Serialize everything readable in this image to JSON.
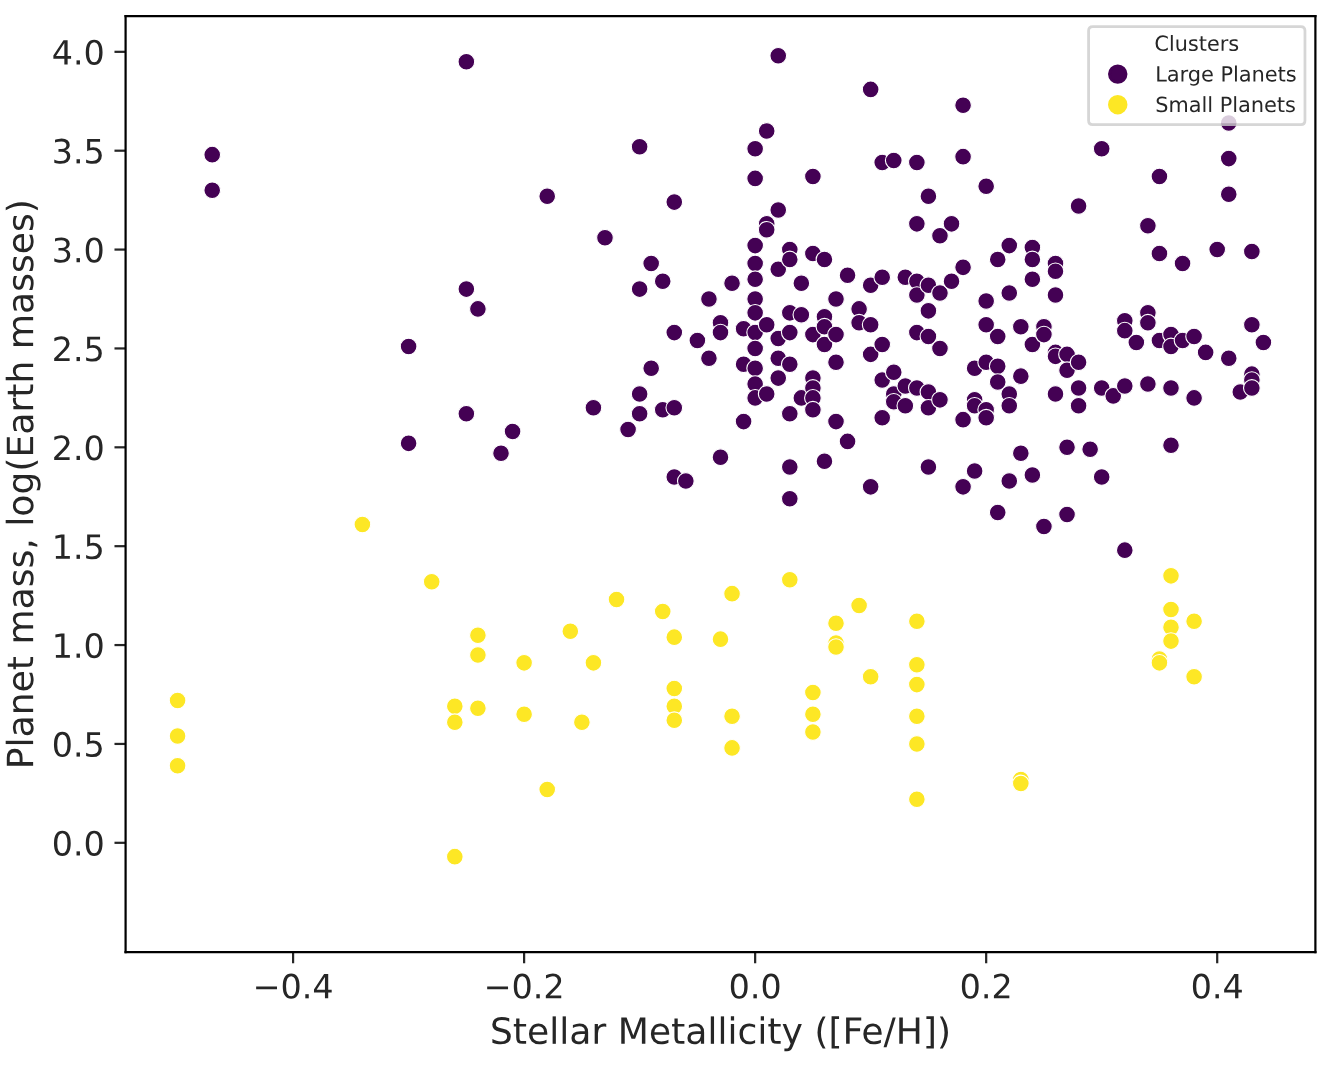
{
  "chart_data": {
    "type": "scatter",
    "xlabel": "Stellar Metallicity ([Fe/H])",
    "ylabel": "Planet mass, log(Earth masses)",
    "legend_title": "Clusters",
    "legend": "top right",
    "grid": false,
    "marker": "circle",
    "xlim": [
      -0.545,
      0.485
    ],
    "ylim": [
      -0.553,
      4.18
    ],
    "xticks": [
      {
        "value": -0.4,
        "label": "−0.4"
      },
      {
        "value": -0.2,
        "label": "−0.2"
      },
      {
        "value": 0,
        "label": "0.0"
      },
      0.2,
      0.4
    ],
    "yticks": [
      {
        "value": 0,
        "label": "0.0"
      },
      0.5,
      {
        "value": 1,
        "label": "1.0"
      },
      1.5,
      {
        "value": 2,
        "label": "2.0"
      },
      2.5,
      {
        "value": 3,
        "label": "3.0"
      },
      3.5,
      {
        "value": 4,
        "label": "4.0"
      }
    ],
    "series": [
      {
        "name": "Large Planets",
        "color": "#440154",
        "x": [
          -0.47,
          -0.47,
          -0.3,
          -0.3,
          -0.25,
          -0.25,
          -0.25,
          -0.24,
          -0.22,
          -0.21,
          -0.18,
          -0.14,
          -0.13,
          -0.11,
          -0.1,
          -0.1,
          -0.1,
          -0.1,
          -0.09,
          -0.09,
          -0.08,
          -0.08,
          -0.07,
          -0.07,
          -0.07,
          -0.07,
          -0.06,
          -0.05,
          -0.04,
          -0.04,
          -0.03,
          -0.03,
          -0.03,
          -0.02,
          -0.01,
          -0.01,
          -0.01,
          0.0,
          0.0,
          0.0,
          0.0,
          0.0,
          0.0,
          0.0,
          0.0,
          0.0,
          0.0,
          0.0,
          0.0,
          0.01,
          0.01,
          0.01,
          0.01,
          0.01,
          0.02,
          0.02,
          0.02,
          0.02,
          0.02,
          0.02,
          0.03,
          0.03,
          0.03,
          0.03,
          0.03,
          0.03,
          0.03,
          0.03,
          0.04,
          0.04,
          0.04,
          0.05,
          0.05,
          0.05,
          0.05,
          0.05,
          0.05,
          0.05,
          0.06,
          0.06,
          0.06,
          0.06,
          0.06,
          0.07,
          0.07,
          0.07,
          0.07,
          0.08,
          0.08,
          0.09,
          0.09,
          0.1,
          0.1,
          0.1,
          0.1,
          0.1,
          0.11,
          0.11,
          0.11,
          0.11,
          0.11,
          0.12,
          0.12,
          0.12,
          0.12,
          0.13,
          0.13,
          0.13,
          0.14,
          0.14,
          0.14,
          0.14,
          0.14,
          0.14,
          0.15,
          0.15,
          0.15,
          0.15,
          0.15,
          0.15,
          0.15,
          0.16,
          0.16,
          0.16,
          0.16,
          0.17,
          0.17,
          0.18,
          0.18,
          0.18,
          0.18,
          0.18,
          0.19,
          0.19,
          0.19,
          0.19,
          0.2,
          0.2,
          0.2,
          0.2,
          0.2,
          0.2,
          0.21,
          0.21,
          0.21,
          0.21,
          0.21,
          0.22,
          0.22,
          0.22,
          0.22,
          0.22,
          0.23,
          0.23,
          0.23,
          0.24,
          0.24,
          0.24,
          0.24,
          0.24,
          0.25,
          0.25,
          0.25,
          0.26,
          0.26,
          0.26,
          0.26,
          0.26,
          0.26,
          0.27,
          0.27,
          0.27,
          0.27,
          0.28,
          0.28,
          0.28,
          0.28,
          0.29,
          0.3,
          0.3,
          0.3,
          0.31,
          0.32,
          0.32,
          0.32,
          0.32,
          0.33,
          0.34,
          0.34,
          0.34,
          0.34,
          0.35,
          0.35,
          0.35,
          0.36,
          0.36,
          0.36,
          0.36,
          0.37,
          0.37,
          0.38,
          0.38,
          0.39,
          0.4,
          0.41,
          0.41,
          0.41,
          0.41,
          0.42,
          0.43,
          0.43,
          0.43,
          0.43,
          0.43,
          0.44
        ],
        "values": [
          3.48,
          3.3,
          2.51,
          2.02,
          3.95,
          2.8,
          2.17,
          2.7,
          1.97,
          2.08,
          3.27,
          2.2,
          3.06,
          2.09,
          3.52,
          2.8,
          2.27,
          2.17,
          2.93,
          2.4,
          2.84,
          2.19,
          3.24,
          2.58,
          2.2,
          1.85,
          1.83,
          2.54,
          2.75,
          2.45,
          2.63,
          2.58,
          1.95,
          2.83,
          2.6,
          2.13,
          2.42,
          3.51,
          3.36,
          3.02,
          2.93,
          2.85,
          2.75,
          2.68,
          2.58,
          2.5,
          2.4,
          2.32,
          2.25,
          3.6,
          3.13,
          3.1,
          2.62,
          2.27,
          3.98,
          3.2,
          2.9,
          2.55,
          2.45,
          2.35,
          3.0,
          2.95,
          2.68,
          2.58,
          2.42,
          2.17,
          1.9,
          1.74,
          2.83,
          2.67,
          2.25,
          3.37,
          2.98,
          2.57,
          2.35,
          2.3,
          2.25,
          2.19,
          2.95,
          2.66,
          2.61,
          2.52,
          1.93,
          2.75,
          2.57,
          2.43,
          2.13,
          2.87,
          2.03,
          2.7,
          2.63,
          3.81,
          2.82,
          2.62,
          2.47,
          1.8,
          3.44,
          2.86,
          2.52,
          2.34,
          2.15,
          3.45,
          2.38,
          2.27,
          2.23,
          2.86,
          2.31,
          2.21,
          3.44,
          3.13,
          2.84,
          2.77,
          2.58,
          2.3,
          3.27,
          2.82,
          2.69,
          2.56,
          2.28,
          2.2,
          1.9,
          3.07,
          2.78,
          2.5,
          2.24,
          3.13,
          2.84,
          3.73,
          3.47,
          2.91,
          2.14,
          1.8,
          2.4,
          2.24,
          2.21,
          1.88,
          3.32,
          2.74,
          2.62,
          2.43,
          2.19,
          2.15,
          2.95,
          2.56,
          2.41,
          2.33,
          1.67,
          3.02,
          2.78,
          2.27,
          2.21,
          1.83,
          2.61,
          2.36,
          1.97,
          3.01,
          2.95,
          2.85,
          2.52,
          1.86,
          2.61,
          2.57,
          1.6,
          2.93,
          2.89,
          2.77,
          2.48,
          2.46,
          2.27,
          2.47,
          2.39,
          2.0,
          1.66,
          3.22,
          2.43,
          2.3,
          2.21,
          1.99,
          3.51,
          2.3,
          1.85,
          2.26,
          2.64,
          2.59,
          2.31,
          1.48,
          2.53,
          3.12,
          2.68,
          2.63,
          2.32,
          3.37,
          2.98,
          2.54,
          2.57,
          2.51,
          2.3,
          2.01,
          2.93,
          2.54,
          2.56,
          2.25,
          2.48,
          3.0,
          3.64,
          3.46,
          3.28,
          2.45,
          2.28,
          2.99,
          2.62,
          2.37,
          2.34,
          2.3,
          2.53
        ]
      },
      {
        "name": "Small Planets",
        "color": "#fde725",
        "x": [
          -0.5,
          -0.5,
          -0.5,
          -0.34,
          -0.28,
          -0.26,
          -0.26,
          -0.26,
          -0.24,
          -0.24,
          -0.24,
          -0.2,
          -0.2,
          -0.18,
          -0.16,
          -0.15,
          -0.14,
          -0.12,
          -0.08,
          -0.07,
          -0.07,
          -0.07,
          -0.07,
          -0.03,
          -0.02,
          -0.02,
          -0.02,
          0.03,
          0.05,
          0.05,
          0.05,
          0.07,
          0.07,
          0.07,
          0.09,
          0.1,
          0.14,
          0.14,
          0.14,
          0.14,
          0.14,
          0.14,
          0.23,
          0.23,
          0.35,
          0.35,
          0.36,
          0.36,
          0.36,
          0.36,
          0.38,
          0.38
        ],
        "values": [
          0.72,
          0.54,
          0.39,
          1.61,
          1.32,
          0.69,
          0.61,
          -0.07,
          1.05,
          0.95,
          0.68,
          0.91,
          0.65,
          0.27,
          1.07,
          0.61,
          0.91,
          1.23,
          1.17,
          1.04,
          0.78,
          0.69,
          0.62,
          1.03,
          1.26,
          0.64,
          0.48,
          1.33,
          0.76,
          0.65,
          0.56,
          1.11,
          1.01,
          0.99,
          1.2,
          0.84,
          1.12,
          0.9,
          0.8,
          0.64,
          0.5,
          0.22,
          0.32,
          0.3,
          0.93,
          0.91,
          1.35,
          1.18,
          1.09,
          1.02,
          1.12,
          0.84
        ]
      }
    ]
  }
}
